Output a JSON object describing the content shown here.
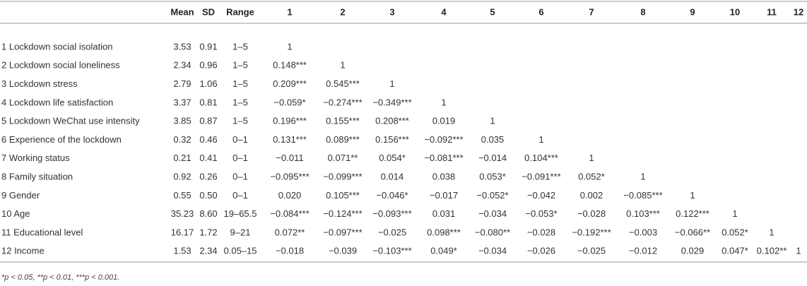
{
  "table": {
    "header": [
      "Mean",
      "SD",
      "Range",
      "1",
      "2",
      "3",
      "4",
      "5",
      "6",
      "7",
      "8",
      "9",
      "10",
      "11",
      "12"
    ],
    "rows": [
      [
        "1 Lockdown social isolation",
        "3.53",
        "0.91",
        "1–5",
        "1"
      ],
      [
        "2 Lockdown social loneliness",
        "2.34",
        "0.96",
        "1–5",
        "0.148***",
        "1"
      ],
      [
        "3 Lockdown stress",
        "2.79",
        "1.06",
        "1–5",
        "0.209***",
        "0.545***",
        "1"
      ],
      [
        "4 Lockdown life satisfaction",
        "3.37",
        "0.81",
        "1–5",
        "−0.059*",
        "−0.274***",
        "−0.349***",
        "1"
      ],
      [
        "5 Lockdown WeChat use intensity",
        "3.85",
        "0.87",
        "1–5",
        "0.196***",
        "0.155***",
        "0.208***",
        "0.019",
        "1"
      ],
      [
        "6 Experience of the lockdown",
        "0.32",
        "0.46",
        "0–1",
        "0.131***",
        "0.089***",
        "0.156***",
        "−0.092***",
        "0.035",
        "1"
      ],
      [
        "7 Working status",
        "0.21",
        "0.41",
        "0–1",
        "−0.011",
        "0.071**",
        "0.054*",
        "−0.081***",
        "−0.014",
        "0.104***",
        "1"
      ],
      [
        "8 Family situation",
        "0.92",
        "0.26",
        "0–1",
        "−0.095***",
        "−0.099***",
        "0.014",
        "0.038",
        "0.053*",
        "−0.091***",
        "0.052*",
        "1"
      ],
      [
        "9 Gender",
        "0.55",
        "0.50",
        "0–1",
        "0.020",
        "0.105***",
        "−0.046*",
        "−0.017",
        "−0.052*",
        "−0.042",
        "0.002",
        "−0.085***",
        "1"
      ],
      [
        "10 Age",
        "35.23",
        "8.60",
        "19–65.5",
        "−0.084***",
        "−0.124***",
        "−0.093***",
        "0.031",
        "−0.034",
        "−0.053*",
        "−0.028",
        "0.103***",
        "0.122***",
        "1"
      ],
      [
        "11 Educational level",
        "16.17",
        "1.72",
        "9–21",
        "0.072**",
        "−0.097***",
        "−0.025",
        "0.098***",
        "−0.080**",
        "−0.028",
        "−0.192***",
        "−0.003",
        "−0.066**",
        "0.052*",
        "1"
      ],
      [
        "12 Income",
        "1.53",
        "2.34",
        "0.05–15",
        "−0.018",
        "−0.039",
        "−0.103***",
        "0.049*",
        "−0.034",
        "−0.026",
        "−0.025",
        "−0.012",
        "0.029",
        "0.047*",
        "0.102**",
        "1"
      ]
    ]
  },
  "footnote": "*p < 0.05, **p < 0.01, ***p < 0.001."
}
